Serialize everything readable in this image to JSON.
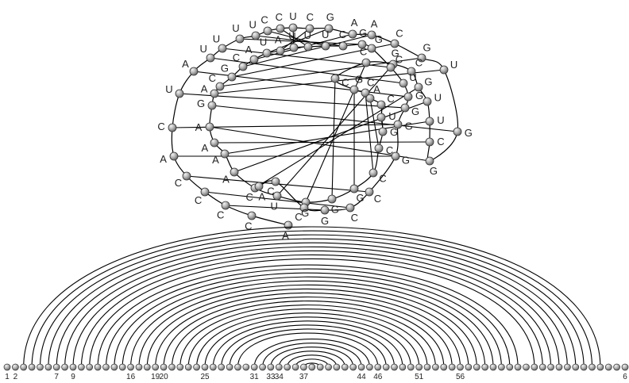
{
  "colors": {
    "line": "#000000",
    "node_fill": "#9a9a9a",
    "node_highlight": "#f2f2f2",
    "background": "#ffffff"
  },
  "sequence": [
    "A",
    "C",
    "C",
    "C",
    "C",
    "A",
    "C",
    "U",
    "A",
    "U",
    "U",
    "U",
    "U",
    "C",
    "C",
    "U",
    "C",
    "G",
    "A",
    "A",
    "C",
    "G",
    "U",
    "G",
    "G",
    "C",
    "U",
    "U",
    "G",
    "C",
    "G",
    "C",
    "C",
    "G",
    "C",
    "A",
    "C",
    "U",
    "G",
    "C",
    "C",
    "G",
    "G",
    "G",
    "U",
    "C",
    "A",
    "A",
    "A",
    "A",
    "G",
    "A",
    "C",
    "G",
    "C",
    "A",
    "U",
    "A",
    "U",
    "U",
    "U",
    "C",
    "G",
    "G",
    "C",
    "U",
    "G",
    "G",
    "G",
    "G",
    "C",
    "C",
    "G",
    "C",
    "C",
    "A"
  ],
  "pairs": [],
  "axis": {
    "ticks": [
      {
        "label": "1"
      },
      {
        "label": "2"
      },
      {
        "label": "7"
      },
      {
        "label": "9"
      },
      {
        "label": "16"
      },
      {
        "label": "19"
      },
      {
        "label": "20"
      },
      {
        "label": "25"
      },
      {
        "label": "31"
      },
      {
        "label": "33"
      },
      {
        "label": "34"
      },
      {
        "label": "37"
      },
      {
        "label": "44"
      },
      {
        "label": "46"
      },
      {
        "label": "51"
      },
      {
        "label": "56"
      },
      {
        "label": "6"
      }
    ]
  }
}
